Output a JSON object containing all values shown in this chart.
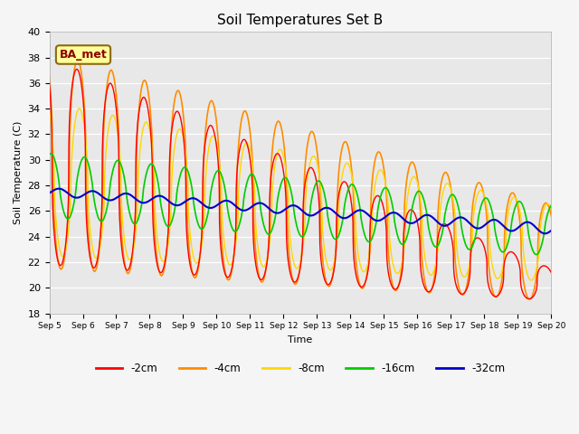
{
  "title": "Soil Temperatures Set B",
  "xlabel": "Time",
  "ylabel": "Soil Temperature (C)",
  "ylim": [
    18,
    40
  ],
  "yticks": [
    18,
    20,
    22,
    24,
    26,
    28,
    30,
    32,
    34,
    36,
    38,
    40
  ],
  "xlim": [
    0,
    15
  ],
  "xtick_labels": [
    "Sep 5",
    "Sep 6",
    "Sep 7",
    "Sep 8",
    "Sep 9",
    "Sep 10",
    "Sep 11",
    "Sep 12",
    "Sep 13",
    "Sep 14",
    "Sep 15",
    "Sep 16",
    "Sep 17",
    "Sep 18",
    "Sep 19",
    "Sep 20"
  ],
  "annotation_text": "BA_met",
  "annotation_color": "#8B0000",
  "annotation_bg": "#FFFF99",
  "series": {
    "-2cm": {
      "color": "#FF0000",
      "lw": 1.0
    },
    "-4cm": {
      "color": "#FF8C00",
      "lw": 1.2
    },
    "-8cm": {
      "color": "#FFD700",
      "lw": 1.0
    },
    "-16cm": {
      "color": "#00CC00",
      "lw": 1.2
    },
    "-32cm": {
      "color": "#0000CC",
      "lw": 1.5
    }
  },
  "fig_bg": "#F5F5F5",
  "plot_bg": "#E8E8E8"
}
